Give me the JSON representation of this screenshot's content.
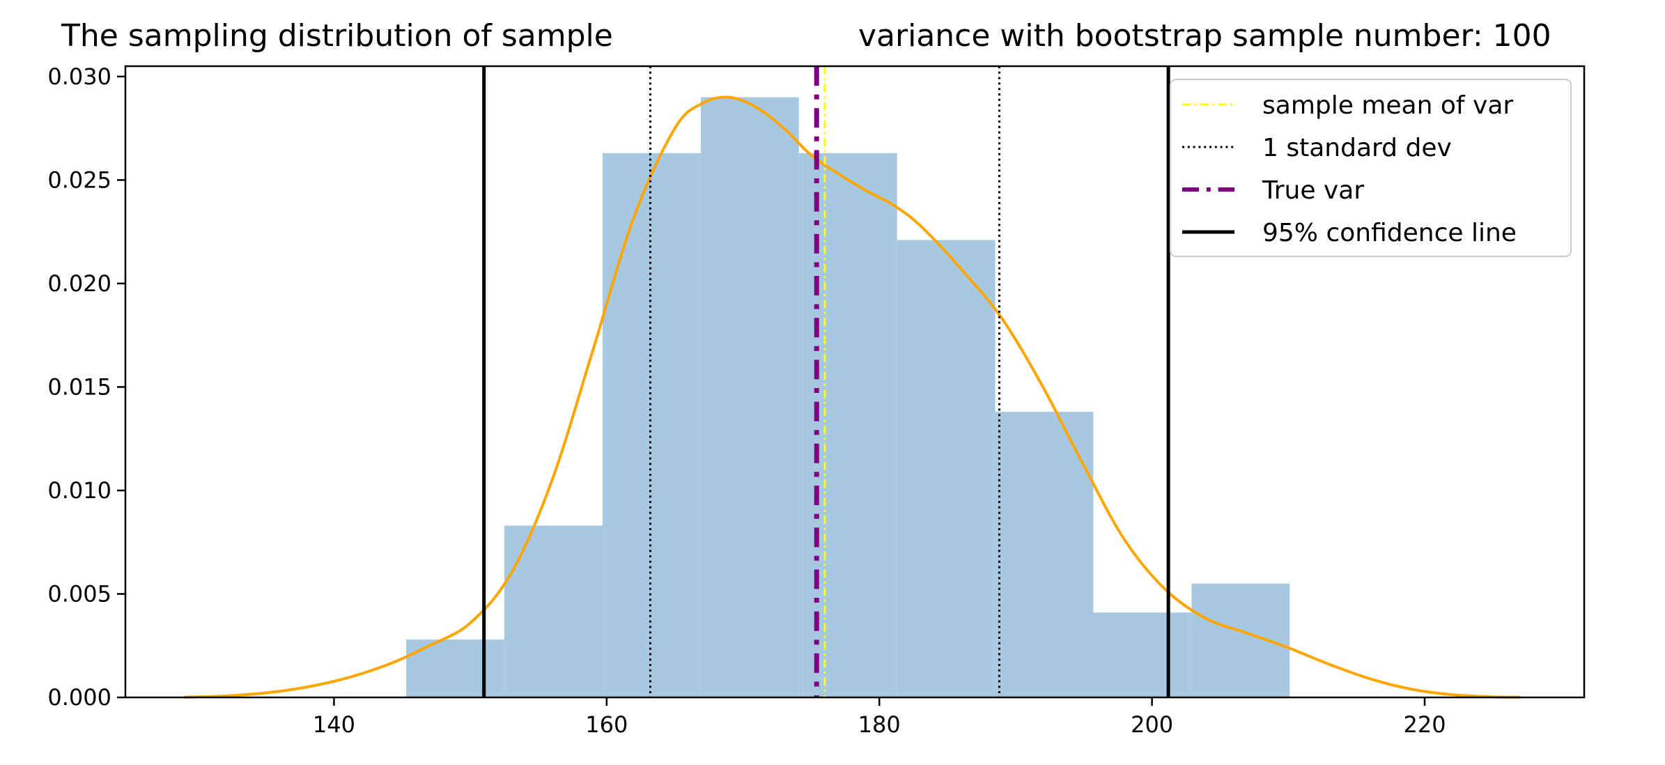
{
  "chart_data": {
    "type": "histogram",
    "title_left": "The sampling distribution of sample",
    "title_right": "variance with bootstrap sample number: 100",
    "xlabel": "",
    "ylabel": "",
    "xlim": [
      124.7,
      231.7
    ],
    "ylim": [
      0,
      0.0305
    ],
    "x_ticks": [
      140,
      160,
      180,
      200,
      220
    ],
    "x_tick_labels": [
      "140",
      "160",
      "180",
      "200",
      "220"
    ],
    "y_ticks": [
      0,
      0.005,
      0.01,
      0.015,
      0.02,
      0.025,
      0.03
    ],
    "y_tick_labels": [
      "0.000",
      "0.005",
      "0.010",
      "0.015",
      "0.020",
      "0.025",
      "0.030"
    ],
    "grid": false,
    "histogram": {
      "color": "#a6c8e0",
      "bins": [
        {
          "x0": 145.3,
          "x1": 152.5,
          "density": 0.0028
        },
        {
          "x0": 152.5,
          "x1": 159.7,
          "density": 0.0083
        },
        {
          "x0": 159.7,
          "x1": 166.9,
          "density": 0.0263
        },
        {
          "x0": 166.9,
          "x1": 174.1,
          "density": 0.029
        },
        {
          "x0": 174.1,
          "x1": 181.3,
          "density": 0.0263
        },
        {
          "x0": 181.3,
          "x1": 188.5,
          "density": 0.0221
        },
        {
          "x0": 188.5,
          "x1": 195.7,
          "density": 0.0138
        },
        {
          "x0": 195.7,
          "x1": 202.9,
          "density": 0.0041
        },
        {
          "x0": 202.9,
          "x1": 210.1,
          "density": 0.0055
        }
      ]
    },
    "kde": {
      "color": "#ffa500",
      "x": [
        129,
        132,
        135,
        138,
        141,
        144,
        147,
        150,
        153,
        156,
        159,
        162,
        165,
        167,
        169,
        171,
        173,
        175,
        177,
        179,
        181,
        183,
        186,
        189,
        192,
        195,
        198,
        201,
        204,
        207,
        210,
        213,
        216,
        219,
        222,
        225,
        227
      ],
      "y": [
        1e-05,
        7e-05,
        0.00022,
        0.0005,
        0.00095,
        0.0016,
        0.0025,
        0.0036,
        0.006,
        0.0105,
        0.0168,
        0.0232,
        0.0275,
        0.0287,
        0.029,
        0.0285,
        0.0275,
        0.0262,
        0.0253,
        0.0245,
        0.0238,
        0.0228,
        0.0207,
        0.0183,
        0.015,
        0.0112,
        0.0076,
        0.0052,
        0.0038,
        0.0031,
        0.0024,
        0.0016,
        0.0009,
        0.0004,
        0.00013,
        3e-05,
        1e-05
      ]
    },
    "vlines": [
      {
        "name": "sample mean of var",
        "x": 176.0,
        "color": "#ffff00",
        "style": "dashdot",
        "width": 3
      },
      {
        "name": "1 standard dev",
        "x": 163.2,
        "color": "#000000",
        "style": "dotted",
        "width": 3
      },
      {
        "name": "",
        "x": 188.8,
        "color": "#000000",
        "style": "dotted",
        "width": 3
      },
      {
        "name": "True var",
        "x": 175.4,
        "color": "#800080",
        "style": "dashdot",
        "width": 7
      },
      {
        "name": "95% confidence line",
        "x": 151.0,
        "color": "#000000",
        "style": "solid",
        "width": 5
      },
      {
        "name": "",
        "x": 201.2,
        "color": "#000000",
        "style": "solid",
        "width": 5
      }
    ],
    "legend": {
      "position": "top-right",
      "entries": [
        {
          "label": "sample mean of var",
          "color": "#ffff00",
          "style": "dashdot"
        },
        {
          "label": "1 standard dev",
          "color": "#000000",
          "style": "dotted"
        },
        {
          "label": "True var",
          "color": "#800080",
          "style": "dashdot"
        },
        {
          "label": "95% confidence line",
          "color": "#000000",
          "style": "solid"
        }
      ]
    }
  }
}
